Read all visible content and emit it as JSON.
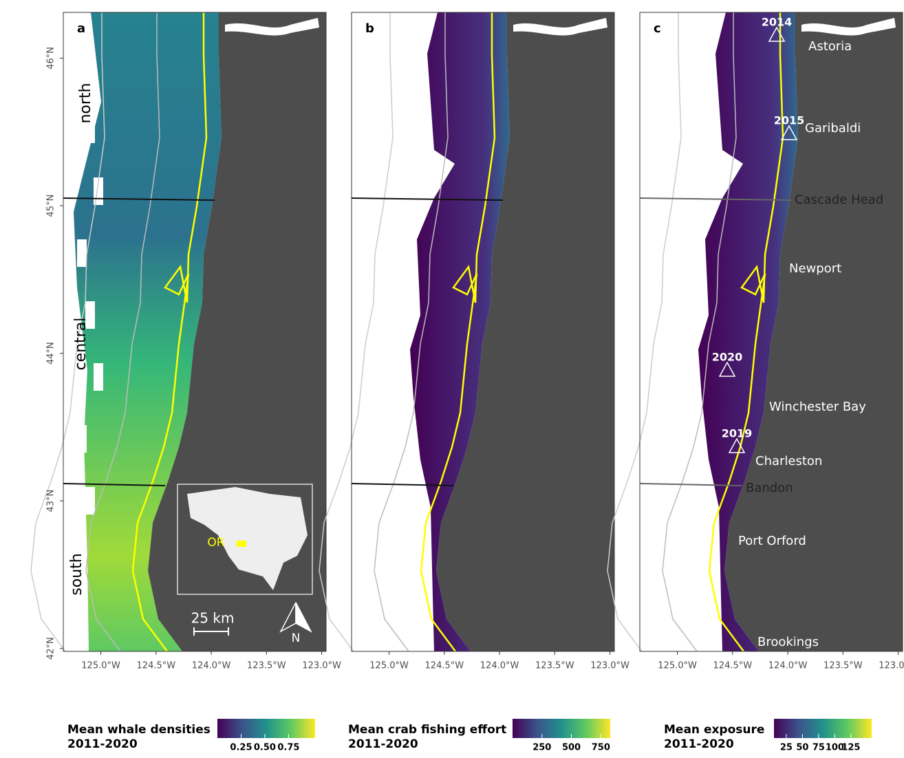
{
  "map": {
    "xlim": [
      -125.34,
      -122.96
    ],
    "ylim": [
      41.98,
      46.31
    ],
    "xticks": [
      {
        "value": -125,
        "label": "125.0°W"
      },
      {
        "value": -124.5,
        "label": "124.5°W"
      },
      {
        "value": -124,
        "label": "124.0°W"
      },
      {
        "value": -123.5,
        "label": "123.5°W"
      },
      {
        "value": -123,
        "label": "123.0°W"
      }
    ],
    "yticks": [
      {
        "value": 42,
        "label": "42°N"
      },
      {
        "value": 43,
        "label": "43°N"
      },
      {
        "value": 44,
        "label": "44°N"
      },
      {
        "value": 45,
        "label": "45°N"
      },
      {
        "value": 46,
        "label": "46°N"
      }
    ]
  },
  "panels": [
    {
      "label": "a"
    },
    {
      "label": "b"
    },
    {
      "label": "c"
    }
  ],
  "regions": [
    "north",
    "central",
    "south"
  ],
  "inset": {
    "label": "OR"
  },
  "scale_bar": "25 km",
  "north_arrow": "N",
  "ports": [
    "Astoria",
    "Garibaldi",
    "Cascade Head",
    "Newport",
    "Winchester Bay",
    "Charleston",
    "Bandon",
    "Port Orford",
    "Brookings"
  ],
  "years": [
    "2014",
    "2015",
    "2020",
    "2019"
  ],
  "legends": [
    {
      "title": [
        "Mean whale densities",
        "2011-2020"
      ],
      "lim": [
        0,
        1.03
      ],
      "ticks": [
        {
          "value": 0.25,
          "label": "0.25"
        },
        {
          "value": 0.5,
          "label": "0.50"
        },
        {
          "value": 0.75,
          "label": "0.75"
        }
      ]
    },
    {
      "title": [
        "Mean crab fishing effort",
        "2011-2020"
      ],
      "lim": [
        0,
        830
      ],
      "ticks": [
        250,
        500,
        750
      ]
    },
    {
      "title": [
        "Mean exposure",
        "2011-2020"
      ],
      "lim": [
        6,
        157
      ],
      "ticks": [
        25,
        50,
        75,
        100,
        125
      ]
    }
  ]
}
